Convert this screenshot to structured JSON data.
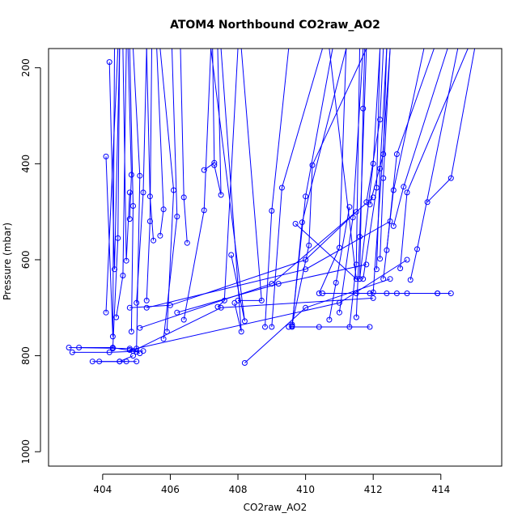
{
  "chart_data": {
    "type": "line",
    "title": "ATOM4 Northbound CO2raw_AO2",
    "xlabel": "CO2raw_AO2",
    "ylabel": "Pressure (mbar)",
    "xlim": [
      402.4,
      415.8
    ],
    "ylim": [
      1030,
      160
    ],
    "y_inverted": true,
    "x_ticks": [
      404,
      406,
      408,
      410,
      412,
      414
    ],
    "y_ticks": [
      200,
      400,
      600,
      800,
      1000
    ],
    "series_color": "#0000ff",
    "grid": false,
    "legend": "none",
    "series": [
      {
        "x": [
          403.0,
          404.8,
          405.1
        ],
        "y": [
          783,
          785,
          795
        ]
      },
      {
        "x": [
          403.1,
          404.2,
          405.2
        ],
        "y": [
          793,
          793,
          790
        ]
      },
      {
        "x": [
          403.3,
          404.3,
          405.0
        ],
        "y": [
          783,
          783,
          792
        ]
      },
      {
        "x": [
          403.7,
          404.5,
          404.9
        ],
        "y": [
          812,
          812,
          800
        ]
      },
      {
        "x": [
          403.9,
          404.7
        ],
        "y": [
          812,
          812
        ]
      },
      {
        "x": [
          404.5,
          405.0
        ],
        "y": [
          812,
          812
        ]
      },
      {
        "x": [
          404.2,
          404.35,
          404.5
        ],
        "y": [
          188,
          620,
          160
        ]
      },
      {
        "x": [
          404.1,
          404.3,
          404.35
        ],
        "y": [
          385,
          760,
          160
        ]
      },
      {
        "x": [
          404.3,
          404.45,
          404.5
        ],
        "y": [
          785,
          555,
          160
        ]
      },
      {
        "x": [
          404.1,
          404.45
        ],
        "y": [
          710,
          160
        ]
      },
      {
        "x": [
          404.4,
          404.6,
          404.7
        ],
        "y": [
          720,
          633,
          160
        ]
      },
      {
        "x": [
          404.8,
          404.7,
          404.6
        ],
        "y": [
          460,
          602,
          160
        ]
      },
      {
        "x": [
          404.8,
          404.85,
          404.75
        ],
        "y": [
          515,
          423,
          160
        ]
      },
      {
        "x": [
          404.85,
          404.9,
          404.8
        ],
        "y": [
          750,
          488,
          160
        ]
      },
      {
        "x": [
          405.0,
          405.1,
          404.9
        ],
        "y": [
          785,
          425,
          160
        ]
      },
      {
        "x": [
          405.0,
          405.2,
          405.3
        ],
        "y": [
          690,
          460,
          160
        ]
      },
      {
        "x": [
          405.3,
          405.4,
          405.45
        ],
        "y": [
          685,
          520,
          160
        ]
      },
      {
        "x": [
          405.5,
          405.4,
          405.3
        ],
        "y": [
          560,
          468,
          160
        ]
      },
      {
        "x": [
          405.7,
          405.8,
          405.6
        ],
        "y": [
          550,
          495,
          160
        ]
      },
      {
        "x": [
          405.9,
          406.1,
          405.7
        ],
        "y": [
          750,
          455,
          160
        ]
      },
      {
        "x": [
          405.8,
          406.2,
          406.05
        ],
        "y": [
          765,
          510,
          160
        ]
      },
      {
        "x": [
          406.5,
          406.4,
          406.3
        ],
        "y": [
          565,
          470,
          160
        ]
      },
      {
        "x": [
          407.0,
          407.3,
          407.25
        ],
        "y": [
          413,
          398,
          160
        ]
      },
      {
        "x": [
          406.4,
          407.0,
          407.2
        ],
        "y": [
          725,
          497,
          160
        ]
      },
      {
        "x": [
          407.3,
          407.5,
          407.4
        ],
        "y": [
          403,
          465,
          160
        ]
      },
      {
        "x": [
          407.4,
          407.6,
          408.0
        ],
        "y": [
          698,
          685,
          160
        ]
      },
      {
        "x": [
          407.8,
          408.2,
          407.2
        ],
        "y": [
          590,
          728,
          160
        ]
      },
      {
        "x": [
          407.9,
          408.1,
          407.5
        ],
        "y": [
          690,
          750,
          160
        ]
      },
      {
        "x": [
          408.0,
          408.7,
          408.1
        ],
        "y": [
          685,
          685,
          160
        ]
      },
      {
        "x": [
          404.8,
          406.0,
          410.0,
          411.5
        ],
        "y": [
          700,
          695,
          600,
          500
        ]
      },
      {
        "x": [
          405.1,
          409.0,
          412.0
        ],
        "y": [
          742,
          650,
          470
        ]
      },
      {
        "x": [
          405.3,
          410.0,
          412.5
        ],
        "y": [
          700,
          620,
          520
        ]
      },
      {
        "x": [
          404.8,
          411.0,
          413.0
        ],
        "y": [
          788,
          690,
          600
        ]
      },
      {
        "x": [
          406.2,
          409.2,
          411.8
        ],
        "y": [
          710,
          650,
          610
        ]
      },
      {
        "x": [
          404.9,
          407.5,
          412.0
        ],
        "y": [
          790,
          700,
          680
        ]
      },
      {
        "x": [
          408.2,
          410.0,
          412.5
        ],
        "y": [
          815,
          700,
          640
        ]
      },
      {
        "x": [
          408.8,
          409.0,
          409.5
        ],
        "y": [
          740,
          498,
          160
        ]
      },
      {
        "x": [
          409.0,
          409.3,
          410.5
        ],
        "y": [
          740,
          450,
          160
        ]
      },
      {
        "x": [
          409.6,
          410.0,
          410.8
        ],
        "y": [
          738,
          468,
          160
        ]
      },
      {
        "x": [
          409.6,
          409.9,
          411.2
        ],
        "y": [
          740,
          522,
          160
        ]
      },
      {
        "x": [
          409.6,
          410.1,
          410.2,
          411.8
        ],
        "y": [
          735,
          570,
          403,
          160
        ]
      },
      {
        "x": [
          409.7,
          411.5,
          410.7
        ],
        "y": [
          525,
          640,
          160
        ]
      },
      {
        "x": [
          410.4,
          411.0,
          411.2
        ],
        "y": [
          670,
          575,
          160
        ]
      },
      {
        "x": [
          410.7,
          410.9,
          411.3
        ],
        "y": [
          725,
          648,
          490
        ]
      },
      {
        "x": [
          411.0,
          411.4,
          411.7
        ],
        "y": [
          710,
          512,
          160
        ]
      },
      {
        "x": [
          411.3,
          411.5,
          411.6
        ],
        "y": [
          740,
          610,
          160
        ]
      },
      {
        "x": [
          411.5,
          411.6,
          411.8
        ],
        "y": [
          720,
          552,
          160
        ]
      },
      {
        "x": [
          411.6,
          411.7,
          411.75
        ],
        "y": [
          640,
          285,
          160
        ]
      },
      {
        "x": [
          411.6,
          412.0,
          412.2
        ],
        "y": [
          640,
          400,
          160
        ]
      },
      {
        "x": [
          411.7,
          412.1,
          412.2
        ],
        "y": [
          640,
          450,
          160
        ]
      },
      {
        "x": [
          411.8,
          412.2,
          412.3
        ],
        "y": [
          480,
          308,
          160
        ]
      },
      {
        "x": [
          411.9,
          412.3,
          412.4
        ],
        "y": [
          485,
          380,
          160
        ]
      },
      {
        "x": [
          412.1,
          412.2,
          412.4
        ],
        "y": [
          620,
          410,
          160
        ]
      },
      {
        "x": [
          412.2,
          412.3,
          412.5
        ],
        "y": [
          598,
          430,
          160
        ]
      },
      {
        "x": [
          412.3,
          412.6,
          413.5
        ],
        "y": [
          640,
          455,
          160
        ]
      },
      {
        "x": [
          412.4,
          412.7,
          413.8
        ],
        "y": [
          580,
          380,
          160
        ]
      },
      {
        "x": [
          412.6,
          412.9,
          414.2
        ],
        "y": [
          530,
          448,
          160
        ]
      },
      {
        "x": [
          412.8,
          413.0,
          414.8
        ],
        "y": [
          618,
          460,
          160
        ]
      },
      {
        "x": [
          413.1,
          413.3,
          414.5
        ],
        "y": [
          642,
          578,
          160
        ]
      },
      {
        "x": [
          413.6,
          414.3,
          415.0
        ],
        "y": [
          480,
          430,
          160
        ]
      },
      {
        "x": [
          411.9,
          412.0,
          412.5
        ],
        "y": [
          670,
          668,
          160
        ]
      },
      {
        "x": [
          410.5,
          412.7,
          414.3
        ],
        "y": [
          670,
          670,
          670
        ]
      },
      {
        "x": [
          411.5,
          412.4,
          413.9
        ],
        "y": [
          670,
          670,
          670
        ]
      },
      {
        "x": [
          413.0,
          413.9
        ],
        "y": [
          670,
          670
        ]
      },
      {
        "x": [
          409.5,
          410.4,
          411.9
        ],
        "y": [
          740,
          740,
          740
        ]
      }
    ]
  }
}
